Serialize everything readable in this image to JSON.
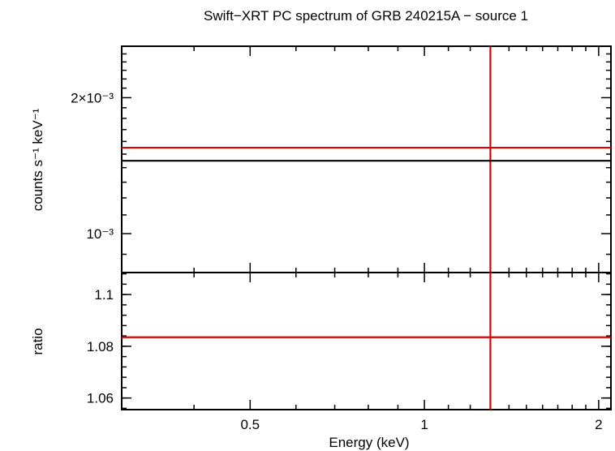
{
  "title": "Swift−XRT PC spectrum of GRB 240215A − source 1",
  "chart_data": [
    {
      "type": "line",
      "panel": "spectrum",
      "ylabel": "counts s⁻¹ keV⁻¹",
      "yscale": "log",
      "xscale": "log",
      "xlim": [
        0.3,
        2.1
      ],
      "ylim": [
        0.00082,
        0.0026
      ],
      "y_ticks": [
        {
          "value": 0.002,
          "label": "2×10⁻³"
        },
        {
          "value": 0.001,
          "label": "10⁻³"
        }
      ],
      "series": [
        {
          "style": "data",
          "color": "#e00000",
          "x": [
            0.3,
            2.1
          ],
          "y": [
            0.00155,
            0.00155
          ],
          "marker_x": 1.3
        },
        {
          "style": "model",
          "color": "#000000",
          "x": [
            0.3,
            2.1
          ],
          "y": [
            0.00145,
            0.00145
          ]
        }
      ]
    },
    {
      "type": "line",
      "panel": "ratio",
      "ylabel": "ratio",
      "xlabel": "Energy (keV)",
      "xscale": "log",
      "xlim": [
        0.3,
        2.1
      ],
      "ylim": [
        1.0555,
        1.1085
      ],
      "y_ticks": [
        {
          "value": 1.1,
          "label": "1.1"
        },
        {
          "value": 1.08,
          "label": "1.08"
        },
        {
          "value": 1.06,
          "label": "1.06"
        }
      ],
      "x_ticks": [
        {
          "value": 0.5,
          "label": "0.5"
        },
        {
          "value": 1,
          "label": "1"
        },
        {
          "value": 2,
          "label": "2"
        }
      ],
      "series": [
        {
          "style": "data",
          "color": "#e00000",
          "x": [
            0.3,
            2.1
          ],
          "y": [
            1.0835,
            1.0835
          ],
          "marker_x": 1.3
        }
      ]
    }
  ]
}
